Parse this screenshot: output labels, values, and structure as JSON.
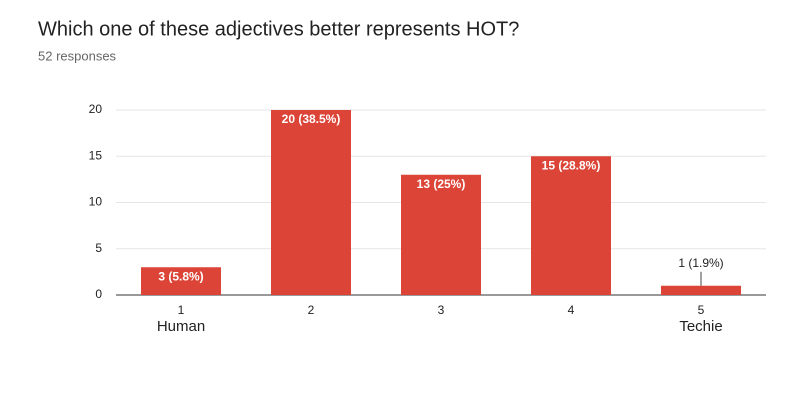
{
  "chart_data": {
    "type": "bar",
    "title": "Which one of these adjectives better represents HOT?",
    "subtitle": "52 responses",
    "categories": [
      "1",
      "2",
      "3",
      "4",
      "5"
    ],
    "category_sublabels": [
      "Human",
      null,
      null,
      null,
      "Techie"
    ],
    "values": [
      3,
      20,
      13,
      15,
      1
    ],
    "value_labels": [
      "3 (5.8%)",
      "20 (38.5%)",
      "13 (25%)",
      "15 (28.8%)",
      "1 (1.9%)"
    ],
    "color": "#db4437",
    "ylim": [
      0,
      20
    ],
    "yticks": [
      0,
      5,
      10,
      15,
      20
    ],
    "grid": true
  }
}
